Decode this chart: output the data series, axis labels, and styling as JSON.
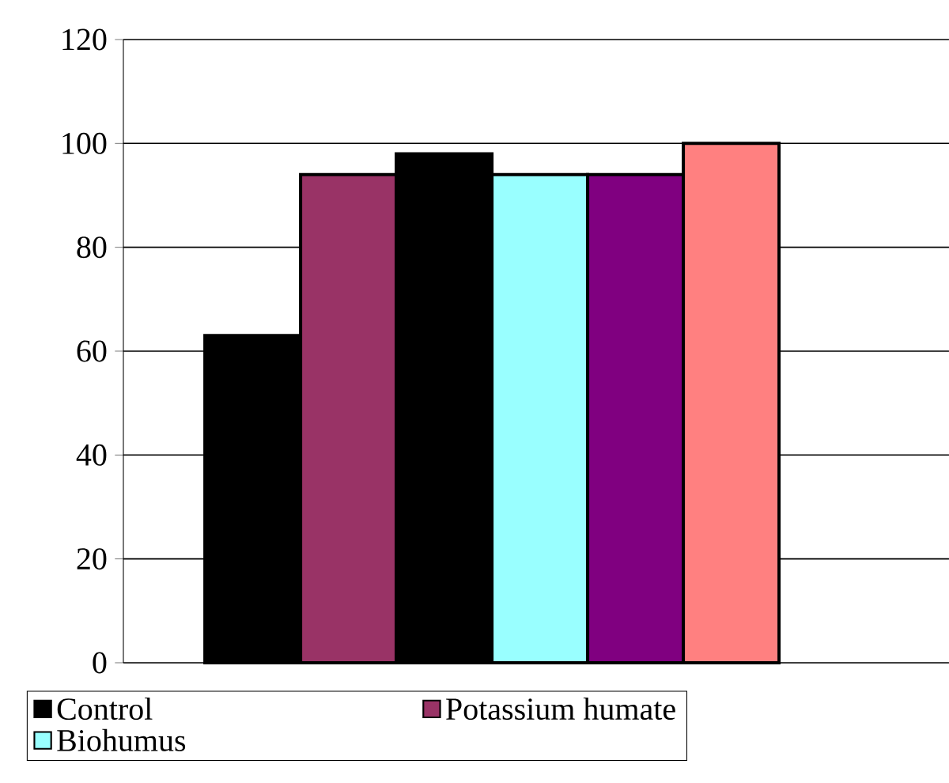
{
  "chart_data": {
    "type": "bar",
    "categories": [
      null
    ],
    "series": [
      {
        "name": "Control",
        "color": "#000000",
        "values": [
          63
        ]
      },
      {
        "name": "Potassium humate",
        "color": "#993366",
        "values": [
          94
        ]
      },
      {
        "color": "#000000",
        "values": [
          98
        ]
      },
      {
        "name": "Biohumus",
        "color": "#99ffff",
        "values": [
          94
        ]
      },
      {
        "color": "#800080",
        "values": [
          94
        ]
      },
      {
        "color": "#ff8080",
        "values": [
          100
        ]
      }
    ],
    "ylim": [
      0,
      120
    ],
    "yticks": [
      0,
      20,
      40,
      60,
      80,
      100,
      120
    ],
    "grid": "y",
    "legend": "bottom"
  }
}
